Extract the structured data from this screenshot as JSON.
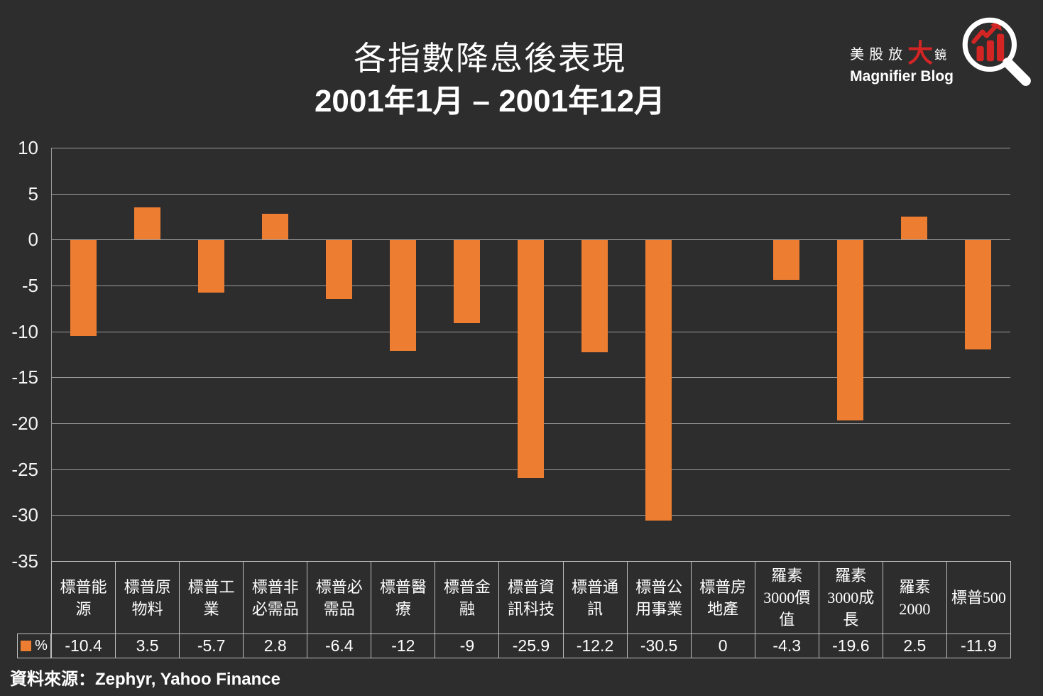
{
  "page": {
    "background_color": "#2d2d2d"
  },
  "header": {
    "title_line1": "各指數降息後表現",
    "title_line2": "2001年1月 – 2001年12月"
  },
  "logo": {
    "cn_prefix": "美股放",
    "cn_big": "大",
    "cn_suffix": "鏡",
    "en": "Magnifier Blog",
    "accent_color": "#d42525"
  },
  "legend": {
    "label": "%",
    "swatch_color": "#ED7D31"
  },
  "source": {
    "text": "資料來源：Zephyr, Yahoo Finance"
  },
  "chart_data": {
    "type": "bar",
    "title": "各指數降息後表現",
    "subtitle": "2001年1月 – 2001年12月",
    "categories": [
      "標普能源",
      "標普原物料",
      "標普工業",
      "標普非必需品",
      "標普必需品",
      "標普醫療",
      "標普金融",
      "標普資訊科技",
      "標普通訊",
      "標普公用事業",
      "標普房地產",
      "羅素3000價值",
      "羅素3000成長",
      "羅素2000",
      "標普500"
    ],
    "values": [
      -10.4,
      3.5,
      -5.7,
      2.8,
      -6.4,
      -12,
      -9,
      -25.9,
      -12.2,
      -30.5,
      0,
      -4.3,
      -19.6,
      2.5,
      -11.9
    ],
    "series_name": "%",
    "ylim": [
      -35,
      10
    ],
    "yticks": [
      10,
      5,
      0,
      -5,
      -10,
      -15,
      -20,
      -25,
      -30,
      -35
    ],
    "bar_color": "#ED7D31",
    "grid": true,
    "legend_position": "bottom-left-table",
    "xlabel": "",
    "ylabel": "",
    "source": "資料來源：Zephyr, Yahoo Finance"
  }
}
